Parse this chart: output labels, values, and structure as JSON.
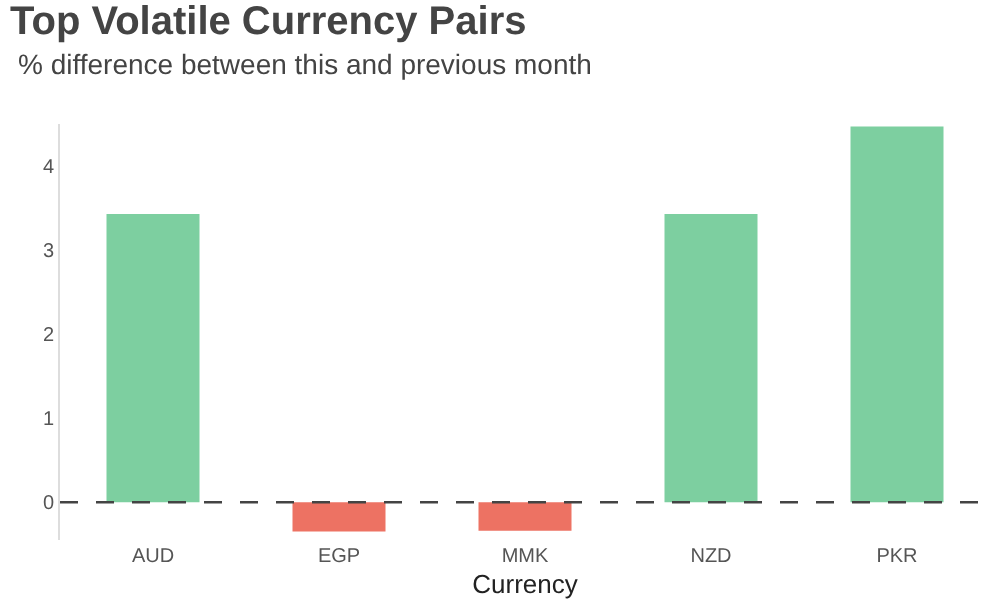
{
  "chart_data": {
    "type": "bar",
    "title": "Top Volatile Currency Pairs",
    "subtitle": "% difference between this and previous month",
    "xlabel": "Currency",
    "categories": [
      "AUD",
      "EGP",
      "MMK",
      "NZD",
      "PKR"
    ],
    "values": [
      3.43,
      -0.35,
      -0.34,
      3.43,
      4.47
    ],
    "colors": [
      "#7dcfa0",
      "#ed7263",
      "#ed7263",
      "#7dcfa0",
      "#7dcfa0"
    ],
    "ylim": [
      -0.45,
      4.5
    ],
    "yticks": [
      0,
      1,
      2,
      3,
      4
    ],
    "ref_lines": [
      {
        "axis": "y",
        "value": 0,
        "color": "#444444",
        "line_style": "dashed"
      }
    ]
  }
}
